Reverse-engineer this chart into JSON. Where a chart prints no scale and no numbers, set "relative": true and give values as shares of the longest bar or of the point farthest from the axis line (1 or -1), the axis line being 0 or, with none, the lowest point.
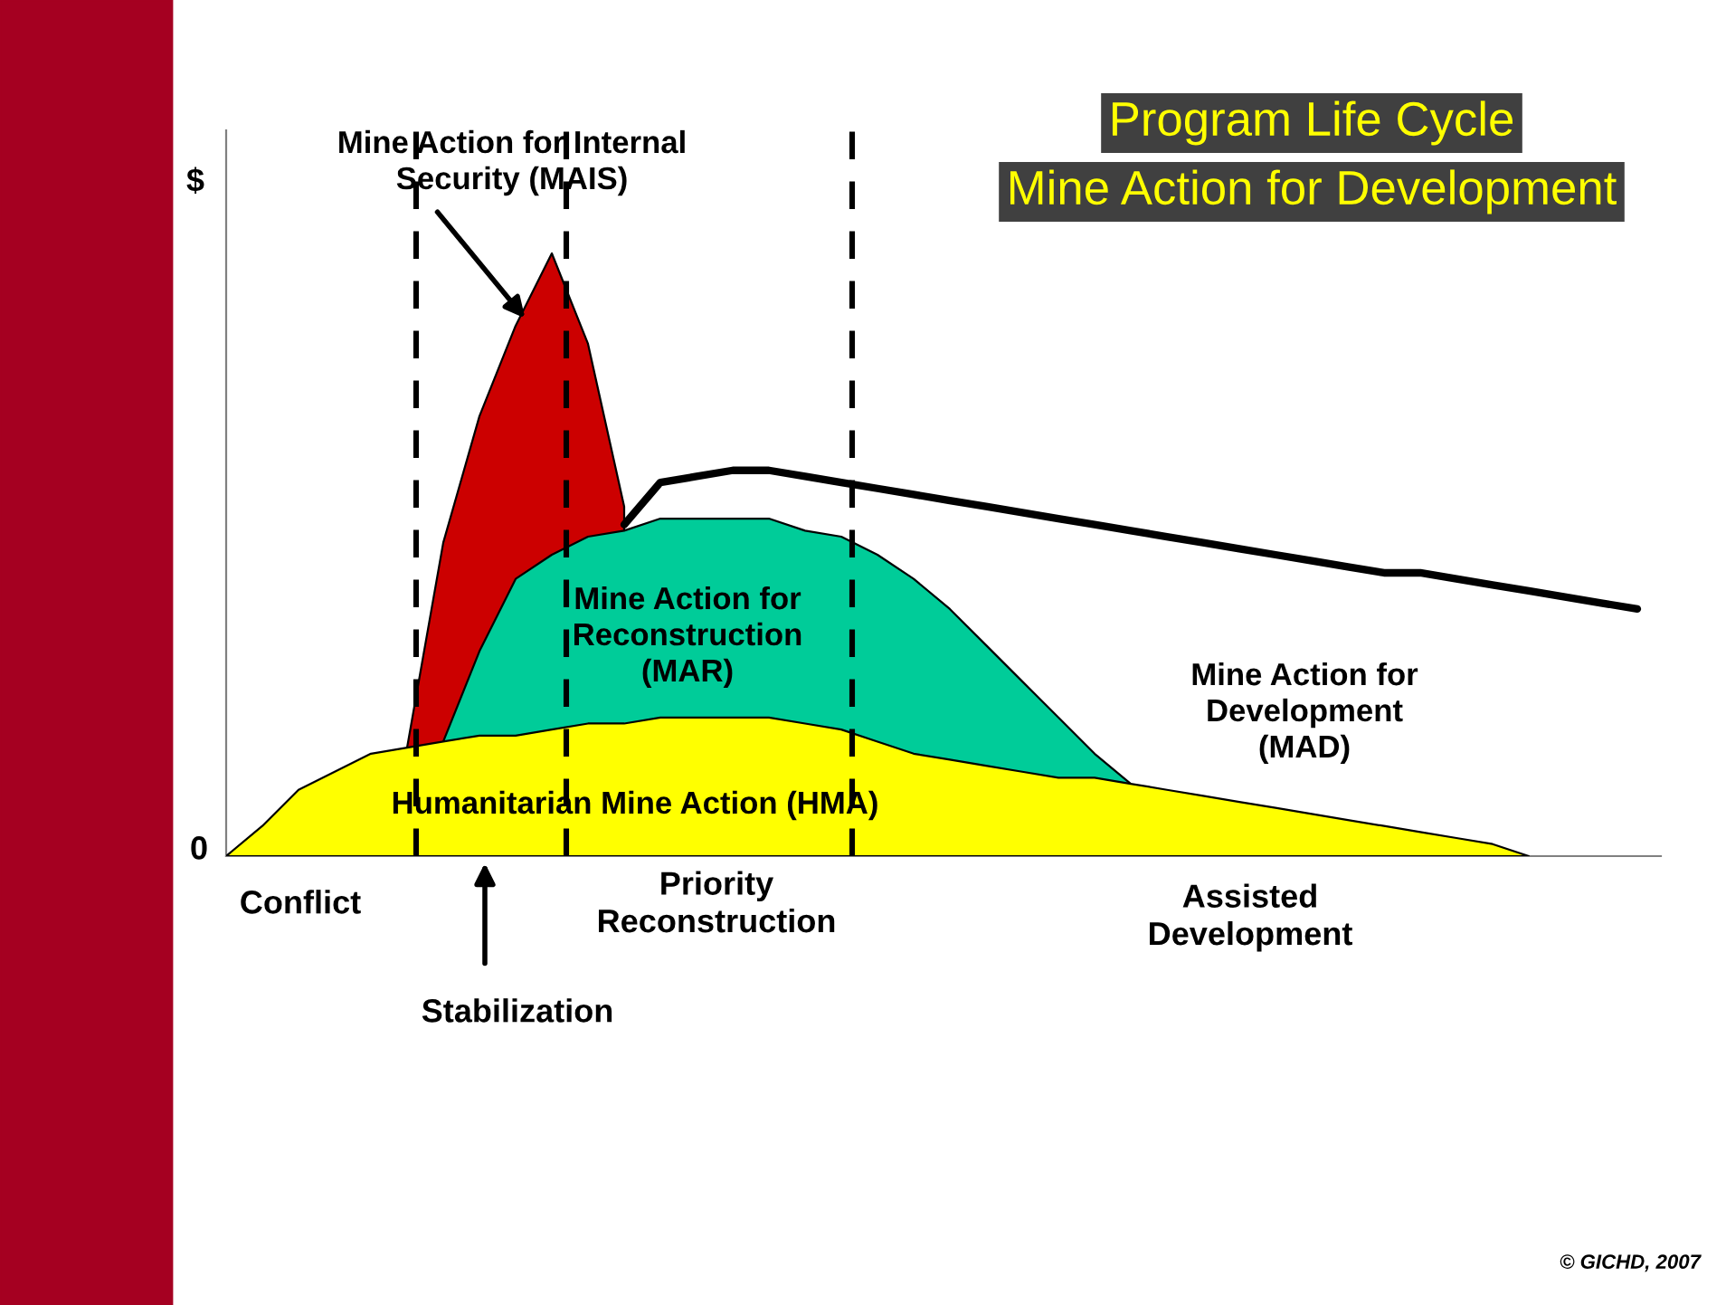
{
  "chart_data": {
    "type": "area",
    "title": "Program Life Cycle",
    "subtitle": "Mine Action for Development",
    "relative": true,
    "legend": false,
    "categories": [
      null,
      null,
      null,
      null,
      null,
      null,
      null,
      null,
      null,
      null,
      null,
      null,
      null,
      null,
      null,
      null,
      null,
      null,
      null,
      null,
      null,
      null,
      null,
      null,
      null,
      null,
      null,
      null,
      null,
      null,
      null,
      null,
      null,
      null,
      null,
      null,
      null,
      null,
      null,
      null
    ],
    "series": [
      {
        "name": "Mine Action for Internal\nSecurity (MAIS)",
        "color": "#cc0000",
        "values": [
          null,
          null,
          null,
          null,
          null,
          0.18,
          0.52,
          0.73,
          0.88,
          1.0,
          0.85,
          0.58,
          null,
          null,
          null,
          null,
          null,
          null,
          null,
          null,
          null,
          null,
          null,
          null,
          null,
          null,
          null,
          null,
          null,
          null,
          null,
          null,
          null,
          null,
          null,
          null,
          null,
          null,
          null,
          null
        ]
      },
      {
        "name": "Mine Action for\nReconstruction\n(MAR)",
        "color": "#00cc99",
        "values": [
          null,
          null,
          null,
          null,
          null,
          null,
          0.19,
          0.34,
          0.46,
          0.5,
          0.53,
          0.54,
          0.56,
          0.56,
          0.56,
          0.56,
          0.54,
          0.53,
          0.5,
          0.46,
          0.41,
          0.35,
          0.29,
          0.23,
          0.17,
          0.12,
          null,
          null,
          null,
          null,
          null,
          null,
          null,
          null,
          null,
          null,
          null,
          null,
          null,
          null
        ]
      },
      {
        "name": "Humanitarian Mine Action (HMA)",
        "color": "#ffff00",
        "values": [
          0,
          0.05,
          0.11,
          0.14,
          0.17,
          0.18,
          0.19,
          0.2,
          0.2,
          0.21,
          0.22,
          0.22,
          0.23,
          0.23,
          0.23,
          0.23,
          0.22,
          0.21,
          0.19,
          0.17,
          0.16,
          0.15,
          0.14,
          0.13,
          0.13,
          0.12,
          0.11,
          0.1,
          0.09,
          0.08,
          0.07,
          0.06,
          0.05,
          0.04,
          0.03,
          0.02,
          0,
          null,
          null,
          null
        ]
      },
      {
        "type": "line",
        "color": "#000000",
        "values": [
          null,
          null,
          null,
          null,
          null,
          null,
          null,
          null,
          null,
          null,
          null,
          0.55,
          0.62,
          0.63,
          0.64,
          0.64,
          0.63,
          0.62,
          0.61,
          0.6,
          0.59,
          0.58,
          0.57,
          0.56,
          0.55,
          0.54,
          0.53,
          0.52,
          0.51,
          0.5,
          0.49,
          0.48,
          0.47,
          0.47,
          0.46,
          0.45,
          0.44,
          0.43,
          0.42,
          0.41
        ]
      }
    ],
    "annotations": [
      "Mine Action for\nDevelopment\n(MAD)",
      "Conflict",
      "Stabilization",
      "Priority\nReconstruction",
      "Assisted\nDevelopment",
      "$",
      "0",
      "© GICHD, 2007"
    ]
  }
}
